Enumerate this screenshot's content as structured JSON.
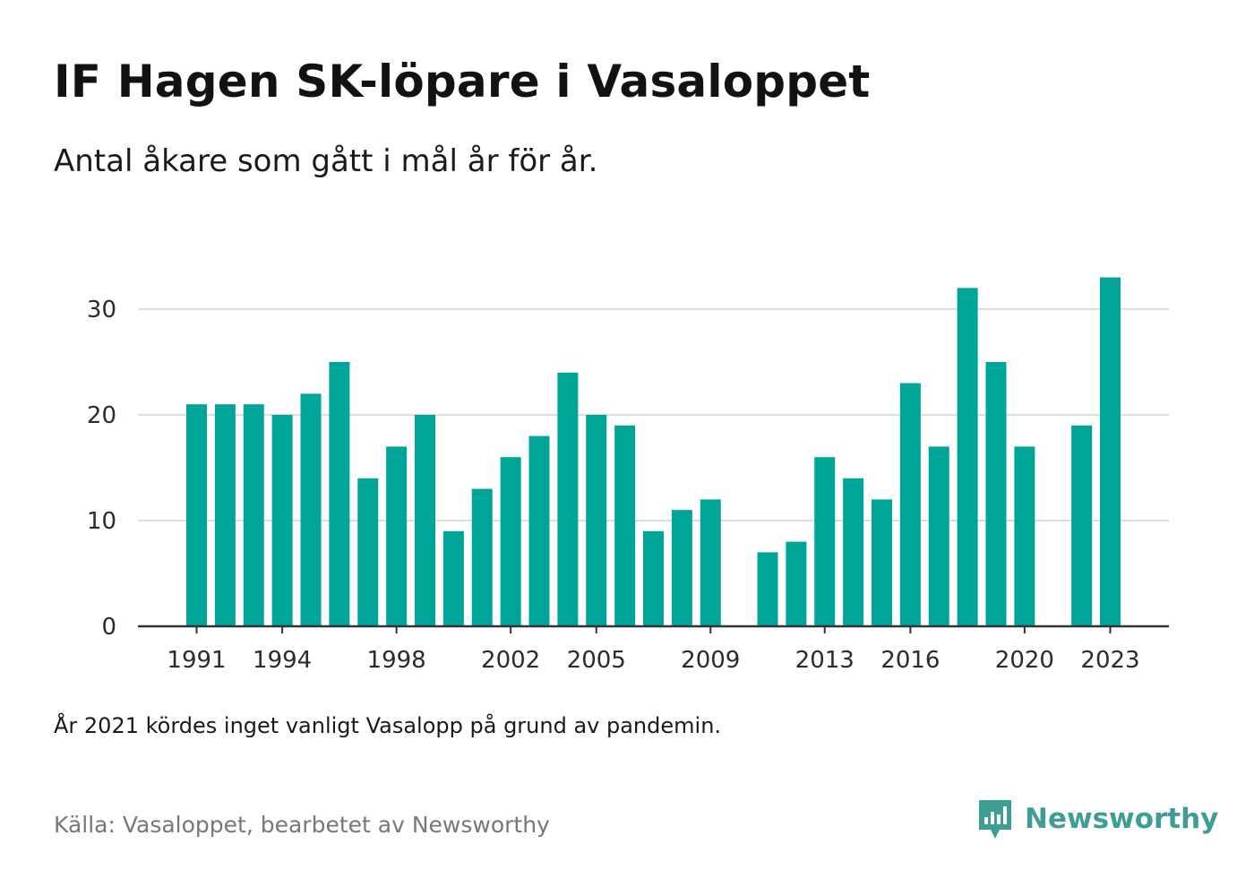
{
  "header": {
    "title": "IF Hagen SK-löpare i Vasaloppet",
    "subtitle": "Antal åkare som gått i mål år för år."
  },
  "footer": {
    "note": "År 2021 kördes inget vanligt Vasalopp på grund av pandemin.",
    "source": "Källa: Vasaloppet, bearbetet av Newsworthy",
    "brand": "Newsworthy"
  },
  "colors": {
    "bar": "#00a59a",
    "grid": "#dddddd",
    "axis": "#333333",
    "brand": "#3e9e95"
  },
  "chart_data": {
    "type": "bar",
    "x": [
      1991,
      1992,
      1993,
      1994,
      1995,
      1996,
      1997,
      1998,
      1999,
      2000,
      2001,
      2002,
      2003,
      2004,
      2005,
      2006,
      2007,
      2008,
      2009,
      2010,
      2011,
      2012,
      2013,
      2014,
      2015,
      2016,
      2017,
      2018,
      2019,
      2020,
      2021,
      2022,
      2023
    ],
    "values": [
      21,
      21,
      21,
      20,
      22,
      25,
      14,
      17,
      20,
      9,
      13,
      16,
      18,
      24,
      20,
      19,
      9,
      11,
      12,
      null,
      7,
      8,
      16,
      14,
      12,
      23,
      17,
      32,
      25,
      17,
      null,
      19,
      33
    ],
    "x_ticks": [
      1991,
      1994,
      1998,
      2002,
      2005,
      2009,
      2013,
      2016,
      2020,
      2023
    ],
    "y_ticks": [
      0,
      10,
      20,
      30
    ],
    "ylim": [
      0,
      33
    ],
    "xlabel": "",
    "ylabel": "",
    "grid": true
  }
}
